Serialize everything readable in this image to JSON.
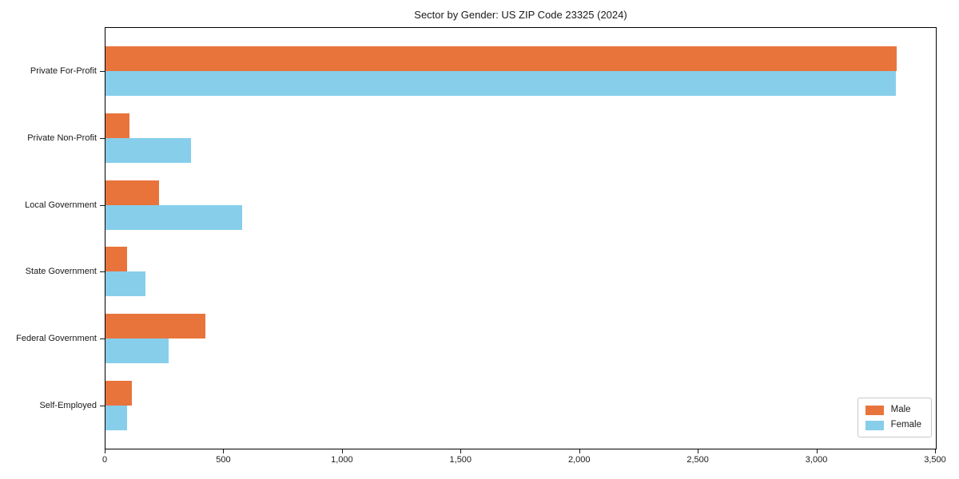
{
  "chart_data": {
    "type": "bar",
    "orientation": "horizontal",
    "title": "Sector by Gender: US ZIP Code 23325 (2024)",
    "categories": [
      "Private For-Profit",
      "Private Non-Profit",
      "Local Government",
      "State Government",
      "Federal Government",
      "Self-Employed"
    ],
    "series": [
      {
        "name": "Male",
        "color": "#E8743C",
        "values": [
          3335,
          100,
          225,
          90,
          420,
          110
        ]
      },
      {
        "name": "Female",
        "color": "#87CEEB",
        "values": [
          3330,
          360,
          575,
          170,
          265,
          90
        ]
      }
    ],
    "xlabel": "",
    "ylabel": "",
    "xlim": [
      0,
      3500
    ],
    "x_ticks": [
      {
        "value": 0,
        "label": "0"
      },
      {
        "value": 500,
        "label": "500"
      },
      {
        "value": 1000,
        "label": "1,000"
      },
      {
        "value": 1500,
        "label": "1,500"
      },
      {
        "value": 2000,
        "label": "2,000"
      },
      {
        "value": 2500,
        "label": "2,500"
      },
      {
        "value": 3000,
        "label": "3,000"
      },
      {
        "value": 3500,
        "label": "3,500"
      }
    ],
    "grid": false,
    "legend_position": "lower right",
    "axis_color": "#000000",
    "text_color": "#1a1a1a"
  }
}
